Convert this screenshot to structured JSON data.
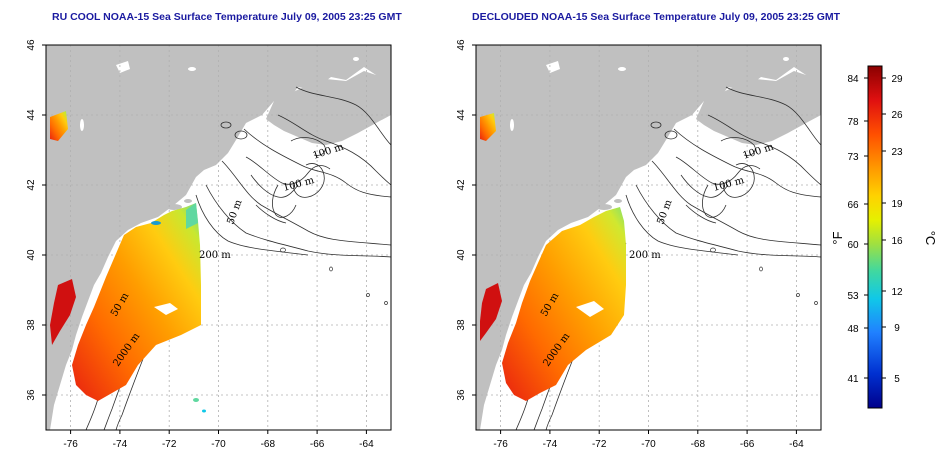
{
  "maps": [
    {
      "title": "RU COOL NOAA-15 Sea Surface Temperature July 09, 2005 23:25 GMT",
      "variant": "raw",
      "x_ticks": [
        "-76",
        "-74",
        "-72",
        "-70",
        "-68",
        "-66",
        "-64"
      ],
      "y_ticks": [
        "36",
        "38",
        "40",
        "42",
        "44",
        "46"
      ],
      "contour_labels": [
        "100 m",
        "100 m",
        "50 m",
        "200 m",
        "50 m",
        "2000 m"
      ]
    },
    {
      "title": "DECLOUDED NOAA-15 Sea Surface Temperature July 09, 2005 23:25 GMT",
      "variant": "declouded",
      "x_ticks": [
        "-76",
        "-74",
        "-72",
        "-70",
        "-68",
        "-66",
        "-64"
      ],
      "y_ticks": [
        "36",
        "38",
        "40",
        "42",
        "44",
        "46"
      ],
      "contour_labels": [
        "100 m",
        "100 m",
        "50 m",
        "200 m",
        "50 m",
        "2000 m"
      ]
    }
  ],
  "map_extent": {
    "lon": [
      -77,
      -63
    ],
    "lat": [
      35,
      46
    ]
  },
  "colorbar": {
    "fahrenheit_unit": "°F",
    "celsius_unit": "°C",
    "fahrenheit_ticks": [
      "84",
      "78",
      "73",
      "66",
      "60",
      "53",
      "48",
      "41"
    ],
    "celsius_ticks": [
      "29",
      "26",
      "23",
      "19",
      "16",
      "12",
      "9",
      "5"
    ],
    "colors": [
      "#8b0000",
      "#e01010",
      "#ff5000",
      "#ff9a00",
      "#ffd200",
      "#e6f000",
      "#a0e040",
      "#40d8a0",
      "#10c8e8",
      "#2080ff",
      "#0030d0",
      "#00008b"
    ]
  },
  "colors": {
    "land": "#c0c0c0",
    "ocean": "#ffffff",
    "grid": "#b0b0b0",
    "contour": "#303030",
    "title": "#1a1aa0"
  }
}
